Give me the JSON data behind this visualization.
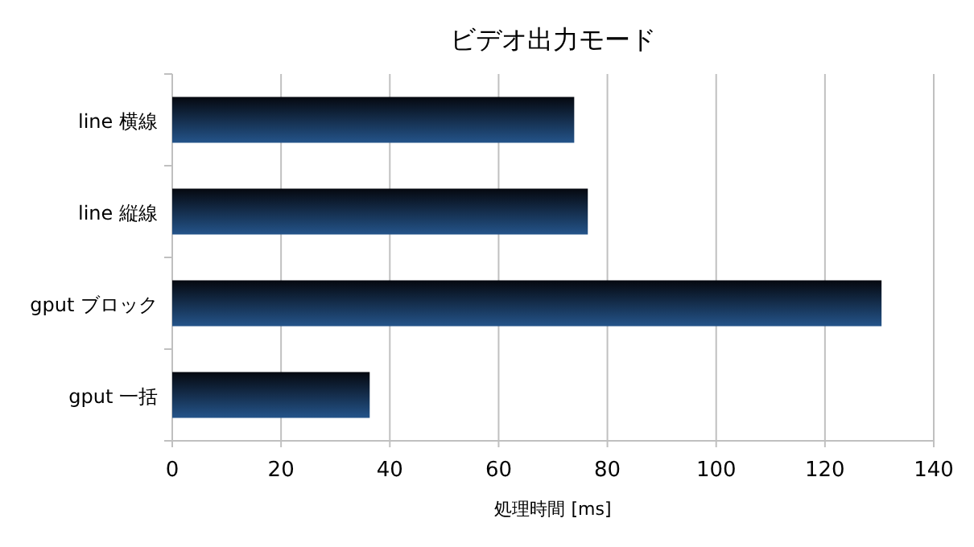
{
  "chart_data": {
    "type": "bar",
    "orientation": "horizontal",
    "title": "ビデオ出力モード",
    "xlabel": "処理時間 [ms]",
    "categories": [
      "line 横線",
      "line 縦線",
      "gput ブロック",
      "gput 一括"
    ],
    "values": [
      73.9,
      76.4,
      130.4,
      36.3
    ],
    "color": "#24548a",
    "xlim": [
      0,
      140
    ],
    "xticks": [
      0,
      20,
      40,
      60,
      80,
      100,
      120,
      140
    ],
    "grid": "x"
  }
}
